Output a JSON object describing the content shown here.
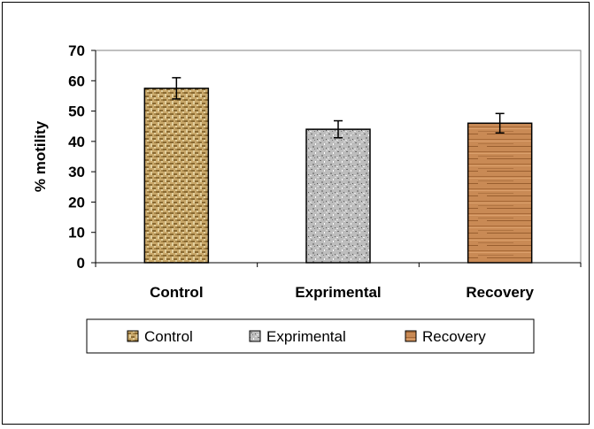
{
  "chart_data": {
    "type": "bar",
    "categories": [
      "Control",
      "Exprimental",
      "Recovery"
    ],
    "values": [
      57.5,
      44,
      46
    ],
    "errors": [
      3.5,
      2.8,
      3.2
    ],
    "ylabel": "% motility",
    "xlabel": "",
    "ylim": [
      0,
      70
    ],
    "yticks": [
      0,
      10,
      20,
      30,
      40,
      50,
      60,
      70
    ],
    "grid": false,
    "legend": {
      "position": "bottom",
      "entries": [
        "Control",
        "Exprimental",
        "Recovery"
      ]
    },
    "colors": [
      "#c9a86a",
      "#b8b8b8",
      "#c98a55"
    ],
    "pattern_names": [
      "burlap-texture",
      "granite-texture",
      "wood-grain-texture"
    ]
  }
}
